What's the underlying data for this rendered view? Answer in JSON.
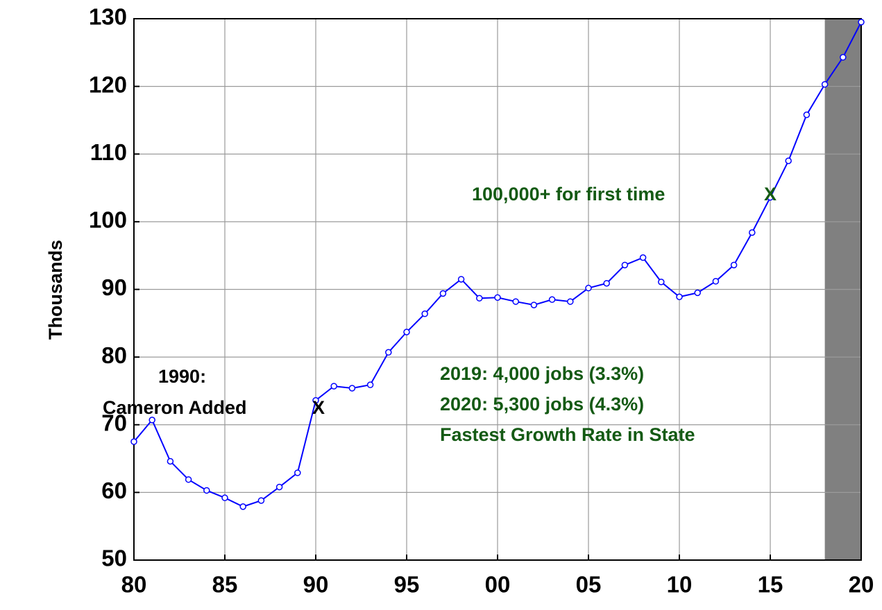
{
  "chart_data": {
    "type": "line",
    "y_label": "Thousands",
    "x": [
      1980,
      1981,
      1982,
      1983,
      1984,
      1985,
      1986,
      1987,
      1988,
      1989,
      1990,
      1991,
      1992,
      1993,
      1994,
      1995,
      1996,
      1997,
      1998,
      1999,
      2000,
      2001,
      2002,
      2003,
      2004,
      2005,
      2006,
      2007,
      2008,
      2009,
      2010,
      2011,
      2012,
      2013,
      2014,
      2015,
      2016,
      2017,
      2018,
      2019,
      2020
    ],
    "series": [
      {
        "color": "#0000ff",
        "values": [
          67.5,
          70.7,
          64.6,
          61.9,
          60.3,
          59.2,
          57.9,
          58.8,
          60.8,
          62.9,
          73.6,
          75.7,
          75.4,
          75.9,
          80.7,
          83.7,
          86.4,
          89.4,
          91.5,
          88.7,
          88.8,
          88.2,
          87.7,
          88.5,
          88.2,
          90.2,
          90.9,
          93.6,
          94.7,
          91.1,
          88.9,
          89.5,
          91.2,
          93.6,
          98.4,
          103.6,
          109.0,
          115.8,
          120.3,
          124.3,
          129.5
        ]
      }
    ],
    "xlim": [
      1980,
      2020
    ],
    "xticks": [
      {
        "value": 1980,
        "label": "80"
      },
      {
        "value": 1985,
        "label": "85"
      },
      {
        "value": 1990,
        "label": "90"
      },
      {
        "value": 1995,
        "label": "95"
      },
      {
        "value": 2000,
        "label": "00"
      },
      {
        "value": 2005,
        "label": "05"
      },
      {
        "value": 2010,
        "label": "10"
      },
      {
        "value": 2015,
        "label": "15"
      },
      {
        "value": 2020,
        "label": "20"
      }
    ],
    "ylim": [
      50,
      130
    ],
    "yticks": [
      50,
      60,
      70,
      80,
      90,
      100,
      110,
      120,
      130
    ],
    "grid": true,
    "shaded_range": [
      2018,
      2020
    ],
    "shade_color": "#808080",
    "annotations": [
      {
        "text": "1990:",
        "color": "#000000"
      },
      {
        "text": "Cameron Added",
        "color": "#000000"
      },
      {
        "text": "X",
        "color": "#000000"
      },
      {
        "text": "100,000+ for first time",
        "color": "#145a14"
      },
      {
        "text": "X",
        "color": "#145a14"
      },
      {
        "text": "2019: 4,000 jobs (3.3%)",
        "color": "#145a14"
      },
      {
        "text": "2020: 5,300 jobs (4.3%)",
        "color": "#145a14"
      },
      {
        "text": "Fastest Growth Rate in State",
        "color": "#145a14"
      }
    ]
  }
}
